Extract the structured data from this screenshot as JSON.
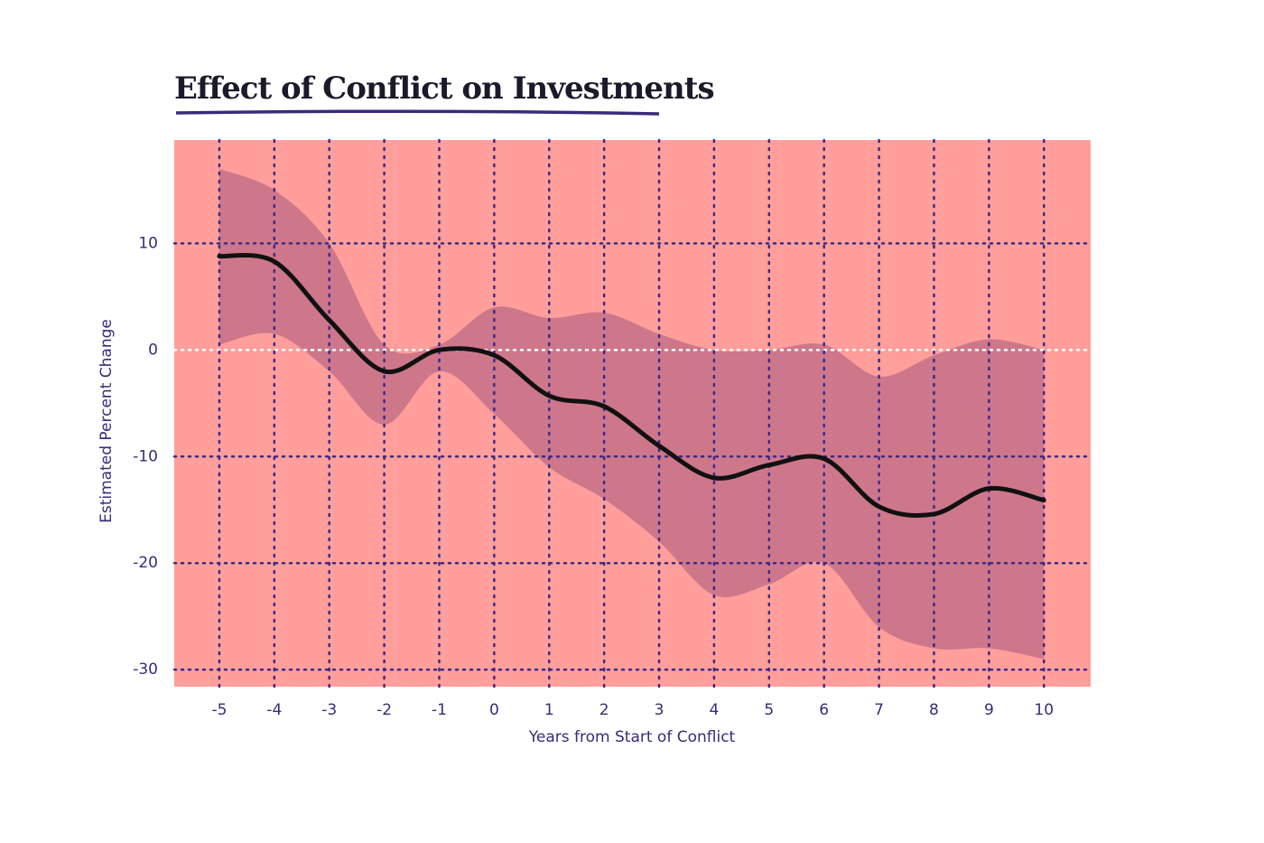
{
  "chart_data": {
    "type": "line",
    "title": "Effect of Conflict on Investments",
    "xlabel": "Years from Start of Conflict",
    "ylabel": "Estimated Percent Change",
    "x": [
      -5,
      -4,
      -3,
      -2,
      -1,
      0,
      1,
      2,
      3,
      4,
      5,
      6,
      7,
      8,
      9,
      10
    ],
    "values": [
      8.8,
      8.3,
      2.8,
      -2,
      0,
      -0.5,
      -4.3,
      -5.3,
      -9,
      -12,
      -10.8,
      -10.2,
      -14.7,
      -15.4,
      -13,
      -14.1
    ],
    "upper": [
      17,
      15,
      10,
      0.5,
      0.5,
      4,
      3,
      3.5,
      1.5,
      0,
      0,
      0.5,
      -2.5,
      -0.5,
      1,
      0
    ],
    "lower": [
      0.5,
      1.5,
      -2,
      -7,
      -2,
      -6,
      -11,
      -14,
      -18,
      -23,
      -22,
      -20,
      -26,
      -28,
      -28,
      -29
    ],
    "color": "#111111",
    "band_color": "#c9728a",
    "background": "#ff9e9b",
    "xlim": [
      -5.82,
      10.85
    ],
    "ylim": [
      -31.6,
      19.7
    ],
    "xticks": [
      -5,
      -4,
      -3,
      -2,
      -1,
      0,
      1,
      2,
      3,
      4,
      5,
      6,
      7,
      8,
      9,
      10
    ],
    "yticks": [
      -30,
      -20,
      -10,
      0,
      10
    ],
    "grid": true,
    "grid_color": "#3b2a86",
    "zero_color": "#ffffff"
  }
}
